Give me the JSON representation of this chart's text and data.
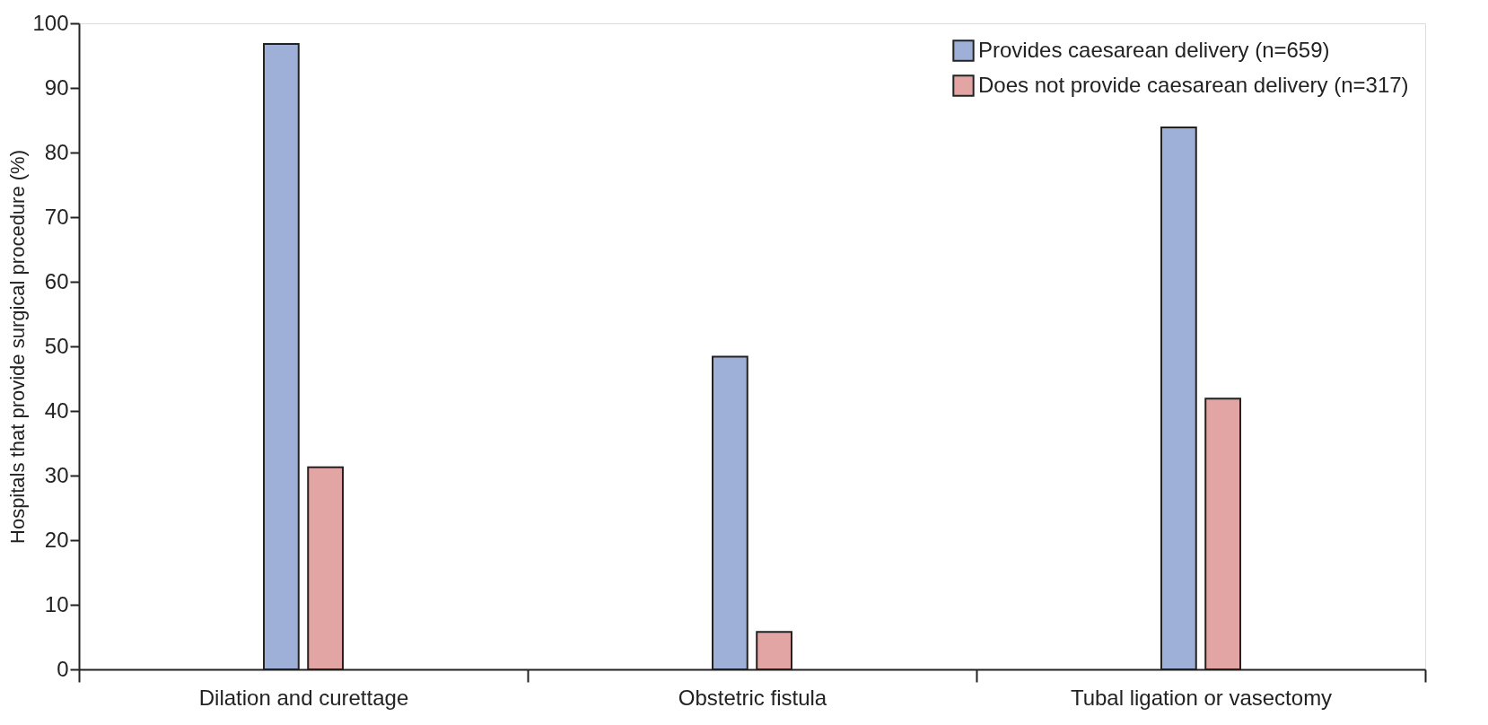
{
  "chart_data": {
    "type": "bar",
    "ylabel": "Hospitals that provide surgical procedure (%)",
    "categories": [
      "Dilation and curettage",
      "Obstetric fistula",
      "Tubal ligation or vasectomy"
    ],
    "series": [
      {
        "name": "Provides caesarean delivery (n=659)",
        "color": "#9fb0d8",
        "values": [
          96.8,
          48.4,
          83.9
        ]
      },
      {
        "name": "Does not provide caesarean delivery (n=317)",
        "color": "#e3a5a3",
        "values": [
          31.3,
          5.8,
          41.9
        ]
      }
    ],
    "ylim": [
      0,
      100
    ],
    "yticks": [
      0,
      10,
      20,
      30,
      40,
      50,
      60,
      70,
      80,
      90,
      100
    ],
    "grid": false,
    "legend": "top right"
  }
}
